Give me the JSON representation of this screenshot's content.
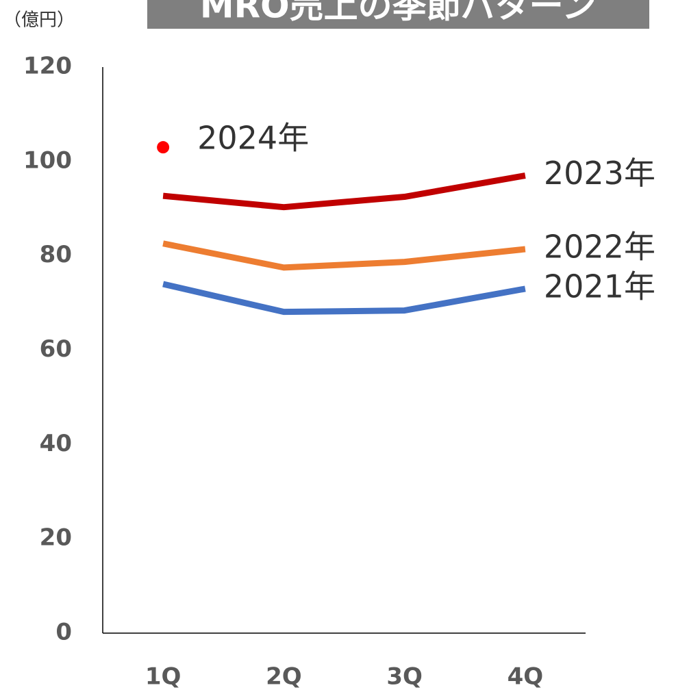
{
  "chart_data": {
    "type": "line",
    "title": "MRO売上の季節パターン",
    "y_axis_label": "（億円）",
    "categories": [
      "1Q",
      "2Q",
      "3Q",
      "4Q"
    ],
    "series": [
      {
        "name": "2021年",
        "color": "#4472c4",
        "values": [
          74.0,
          68.1,
          68.4,
          73.0
        ]
      },
      {
        "name": "2022年",
        "color": "#ed7d31",
        "values": [
          82.6,
          77.5,
          78.7,
          81.4
        ]
      },
      {
        "name": "2023年",
        "color": "#c00000",
        "values": [
          92.7,
          90.3,
          92.5,
          97.0
        ]
      },
      {
        "name": "2024年",
        "color": "#ff0000",
        "values": [
          103.0,
          null,
          null,
          null
        ]
      }
    ],
    "ylim": [
      0,
      120
    ],
    "yticks": [
      0,
      20,
      40,
      60,
      80,
      100,
      120
    ],
    "grid": false
  }
}
